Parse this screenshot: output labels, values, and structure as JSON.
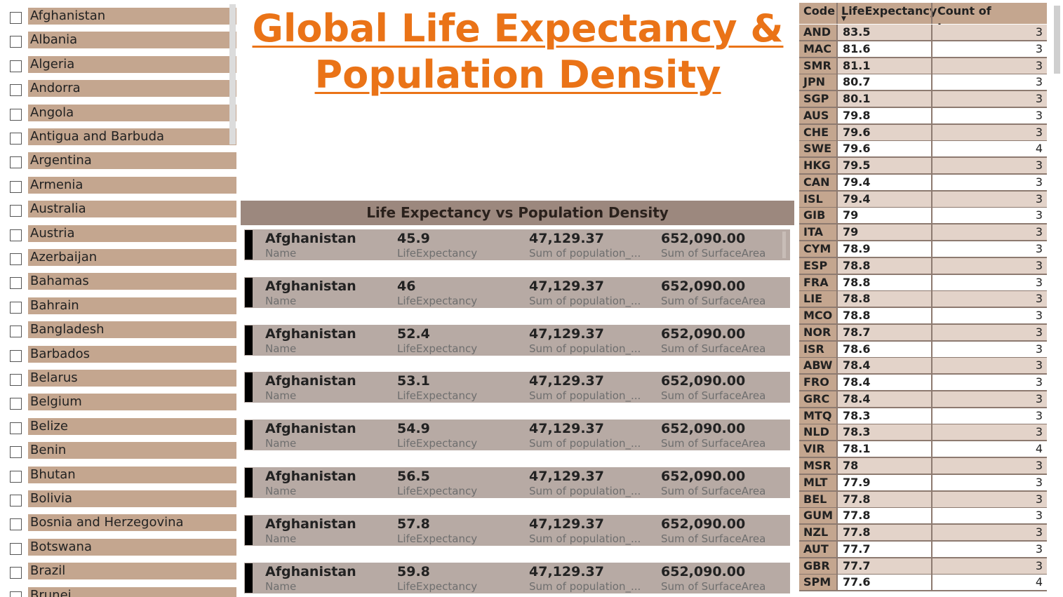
{
  "title": "Global Life Expectancy & Population Density",
  "slicer": {
    "items": [
      "Afghanistan",
      "Albania",
      "Algeria",
      "Andorra",
      "Angola",
      "Antigua and Barbuda",
      "Argentina",
      "Armenia",
      "Australia",
      "Austria",
      "Azerbaijan",
      "Bahamas",
      "Bahrain",
      "Bangladesh",
      "Barbados",
      "Belarus",
      "Belgium",
      "Belize",
      "Benin",
      "Bhutan",
      "Bolivia",
      "Bosnia and Herzegovina",
      "Botswana",
      "Brazil",
      "Brunei"
    ]
  },
  "cards": {
    "header": "Life Expectancy vs Population Density",
    "labels": {
      "name": "Name",
      "life": "LifeExpectancy",
      "pop": "Sum of population_...",
      "area": "Sum of SurfaceArea"
    },
    "rows": [
      {
        "name": "Afghanistan",
        "life": "45.9",
        "pop": "47,129.37",
        "area": "652,090.00"
      },
      {
        "name": "Afghanistan",
        "life": "46",
        "pop": "47,129.37",
        "area": "652,090.00"
      },
      {
        "name": "Afghanistan",
        "life": "52.4",
        "pop": "47,129.37",
        "area": "652,090.00"
      },
      {
        "name": "Afghanistan",
        "life": "53.1",
        "pop": "47,129.37",
        "area": "652,090.00"
      },
      {
        "name": "Afghanistan",
        "life": "54.9",
        "pop": "47,129.37",
        "area": "652,090.00"
      },
      {
        "name": "Afghanistan",
        "life": "56.5",
        "pop": "47,129.37",
        "area": "652,090.00"
      },
      {
        "name": "Afghanistan",
        "life": "57.8",
        "pop": "47,129.37",
        "area": "652,090.00"
      },
      {
        "name": "Afghanistan",
        "life": "59.8",
        "pop": "47,129.37",
        "area": "652,090.00"
      }
    ]
  },
  "table": {
    "headers": {
      "code": "Code",
      "life": "LifeExpectancy",
      "lang": "Count of Language"
    },
    "rows": [
      {
        "code": "AND",
        "life": "83.5",
        "lang": "3"
      },
      {
        "code": "MAC",
        "life": "81.6",
        "lang": "3"
      },
      {
        "code": "SMR",
        "life": "81.1",
        "lang": "3"
      },
      {
        "code": "JPN",
        "life": "80.7",
        "lang": "3"
      },
      {
        "code": "SGP",
        "life": "80.1",
        "lang": "3"
      },
      {
        "code": "AUS",
        "life": "79.8",
        "lang": "3"
      },
      {
        "code": "CHE",
        "life": "79.6",
        "lang": "3"
      },
      {
        "code": "SWE",
        "life": "79.6",
        "lang": "4"
      },
      {
        "code": "HKG",
        "life": "79.5",
        "lang": "3"
      },
      {
        "code": "CAN",
        "life": "79.4",
        "lang": "3"
      },
      {
        "code": "ISL",
        "life": "79.4",
        "lang": "3"
      },
      {
        "code": "GIB",
        "life": "79",
        "lang": "3"
      },
      {
        "code": "ITA",
        "life": "79",
        "lang": "3"
      },
      {
        "code": "CYM",
        "life": "78.9",
        "lang": "3"
      },
      {
        "code": "ESP",
        "life": "78.8",
        "lang": "3"
      },
      {
        "code": "FRA",
        "life": "78.8",
        "lang": "3"
      },
      {
        "code": "LIE",
        "life": "78.8",
        "lang": "3"
      },
      {
        "code": "MCO",
        "life": "78.8",
        "lang": "3"
      },
      {
        "code": "NOR",
        "life": "78.7",
        "lang": "3"
      },
      {
        "code": "ISR",
        "life": "78.6",
        "lang": "3"
      },
      {
        "code": "ABW",
        "life": "78.4",
        "lang": "3"
      },
      {
        "code": "FRO",
        "life": "78.4",
        "lang": "3"
      },
      {
        "code": "GRC",
        "life": "78.4",
        "lang": "3"
      },
      {
        "code": "MTQ",
        "life": "78.3",
        "lang": "3"
      },
      {
        "code": "NLD",
        "life": "78.3",
        "lang": "3"
      },
      {
        "code": "VIR",
        "life": "78.1",
        "lang": "4"
      },
      {
        "code": "MSR",
        "life": "78",
        "lang": "3"
      },
      {
        "code": "MLT",
        "life": "77.9",
        "lang": "3"
      },
      {
        "code": "BEL",
        "life": "77.8",
        "lang": "3"
      },
      {
        "code": "GUM",
        "life": "77.8",
        "lang": "3"
      },
      {
        "code": "NZL",
        "life": "77.8",
        "lang": "3"
      },
      {
        "code": "AUT",
        "life": "77.7",
        "lang": "3"
      },
      {
        "code": "GBR",
        "life": "77.7",
        "lang": "3"
      },
      {
        "code": "SPM",
        "life": "77.6",
        "lang": "4"
      }
    ]
  }
}
